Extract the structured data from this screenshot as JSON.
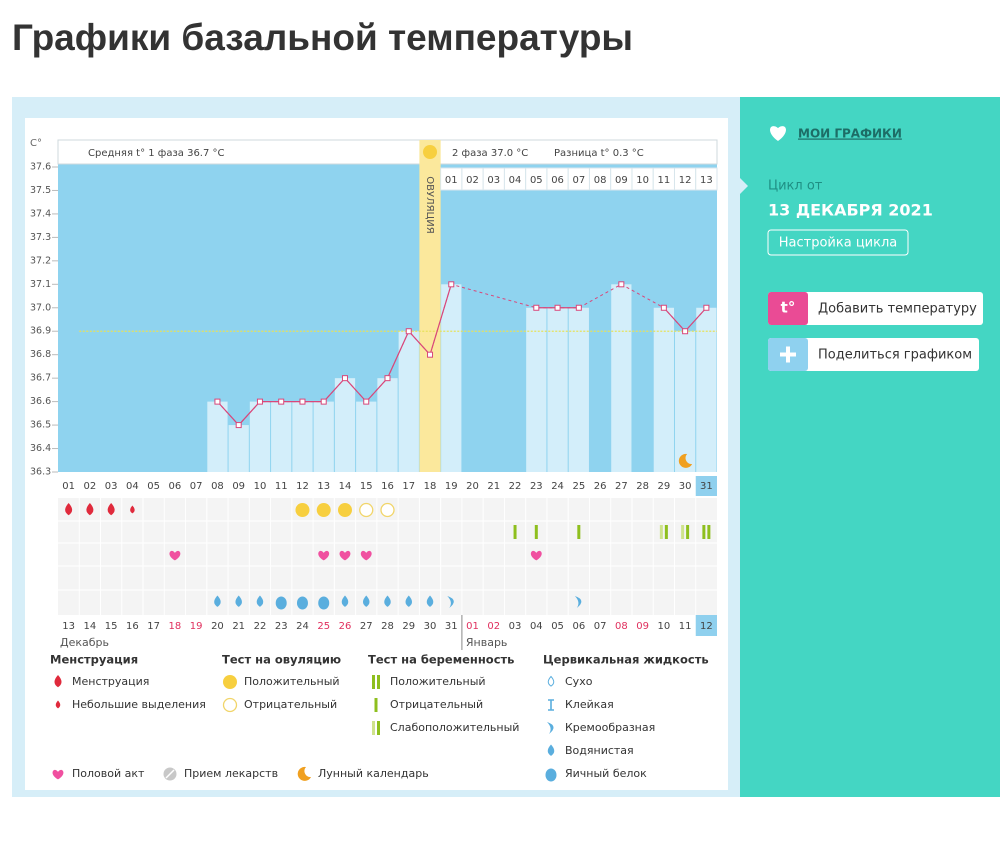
{
  "page_title": "Графики базальной температуры",
  "sidebar": {
    "my_charts": "МОИ ГРАФИКИ",
    "cycle_from": "Цикл от",
    "cycle_date": "13 ДЕКАБРЯ 2021",
    "settings_button": "Настройка цикла",
    "add_temperature_icon": "t°",
    "add_temperature": "Добавить температуру",
    "share": "Поделиться графиком"
  },
  "chart_data": {
    "type": "line",
    "y_label": "C°",
    "phase1_label": "Средняя t° 1 фаза 36.7 °C",
    "ovulation_label": "ОВУЛЯЦИЯ",
    "phase2_label": "2 фаза 37.0 °C",
    "difference_label": "Разница t° 0.3 °C",
    "ovulation_day": 18,
    "categories": [
      "01",
      "02",
      "03",
      "04",
      "05",
      "06",
      "07",
      "08",
      "09",
      "10",
      "11",
      "12",
      "13",
      "14",
      "15",
      "16",
      "17",
      "18",
      "19",
      "20",
      "21",
      "22",
      "23",
      "24",
      "25",
      "26",
      "27",
      "28",
      "29",
      "30",
      "31"
    ],
    "phase2_days": [
      "01",
      "02",
      "03",
      "04",
      "05",
      "06",
      "07",
      "08",
      "09",
      "10",
      "11",
      "12",
      "13"
    ],
    "dates": [
      "13",
      "14",
      "15",
      "16",
      "17",
      "18",
      "19",
      "20",
      "21",
      "22",
      "23",
      "24",
      "25",
      "26",
      "27",
      "28",
      "29",
      "30",
      "31",
      "01",
      "02",
      "03",
      "04",
      "05",
      "06",
      "07",
      "08",
      "09",
      "10",
      "11",
      "12"
    ],
    "months": [
      "Декабрь",
      "Январь"
    ],
    "values": [
      null,
      null,
      null,
      null,
      null,
      null,
      null,
      36.6,
      36.5,
      36.6,
      36.6,
      36.6,
      36.6,
      36.7,
      36.6,
      36.7,
      36.9,
      36.8,
      37.1,
      null,
      null,
      null,
      37.0,
      37.0,
      37.0,
      null,
      37.1,
      null,
      37.0,
      36.9,
      37.0
    ],
    "color": "#d9477a",
    "bar_color": "#d3eefa",
    "coverline": 36.9,
    "ylim": [
      36.3,
      37.6
    ],
    "yticks": [
      36.3,
      36.4,
      36.5,
      36.6,
      36.7,
      36.8,
      36.9,
      {
        "value": 37,
        "label": "37.0"
      },
      37.1,
      37.2,
      37.3,
      37.4,
      37.5,
      37.6
    ],
    "grid": false,
    "legend": [
      {
        "title": "Менструация",
        "items": [
          {
            "label": "Менструация",
            "days": [
              1,
              2,
              3
            ]
          },
          {
            "label": "Небольшие выделения",
            "days": [
              4
            ]
          }
        ]
      },
      {
        "title": "Тест на овуляцию",
        "items": [
          {
            "label": "Положительный",
            "days": [
              12,
              13,
              14
            ]
          },
          {
            "label": "Отрицательный",
            "days": [
              15,
              16
            ]
          }
        ]
      },
      {
        "title": "Тест на беременность",
        "items": [
          {
            "label": "Положительный",
            "days": [
              31
            ]
          },
          {
            "label": "Отрицательный",
            "days": [
              22,
              23,
              25
            ]
          },
          {
            "label": "Слабоположительный",
            "days": [
              29,
              30
            ]
          }
        ]
      },
      {
        "title": "Цервикальная жидкость",
        "items": [
          {
            "label": "Сухо",
            "days": []
          },
          {
            "label": "Клейкая",
            "days": []
          },
          {
            "label": "Кремообразная",
            "days": [
              19,
              25
            ]
          },
          {
            "label": "Водянистая",
            "days": [
              8,
              9,
              10,
              14,
              15,
              16,
              17,
              18
            ]
          },
          {
            "label": "Яичный белок",
            "days": [
              11,
              12,
              13
            ]
          }
        ]
      }
    ],
    "legend_extra": [
      {
        "label": "Половой акт",
        "days": [
          6,
          13,
          14,
          15,
          23
        ]
      },
      {
        "label": "Прием лекарств",
        "days": []
      },
      {
        "label": "Лунный календарь",
        "days": [
          30
        ]
      }
    ]
  }
}
